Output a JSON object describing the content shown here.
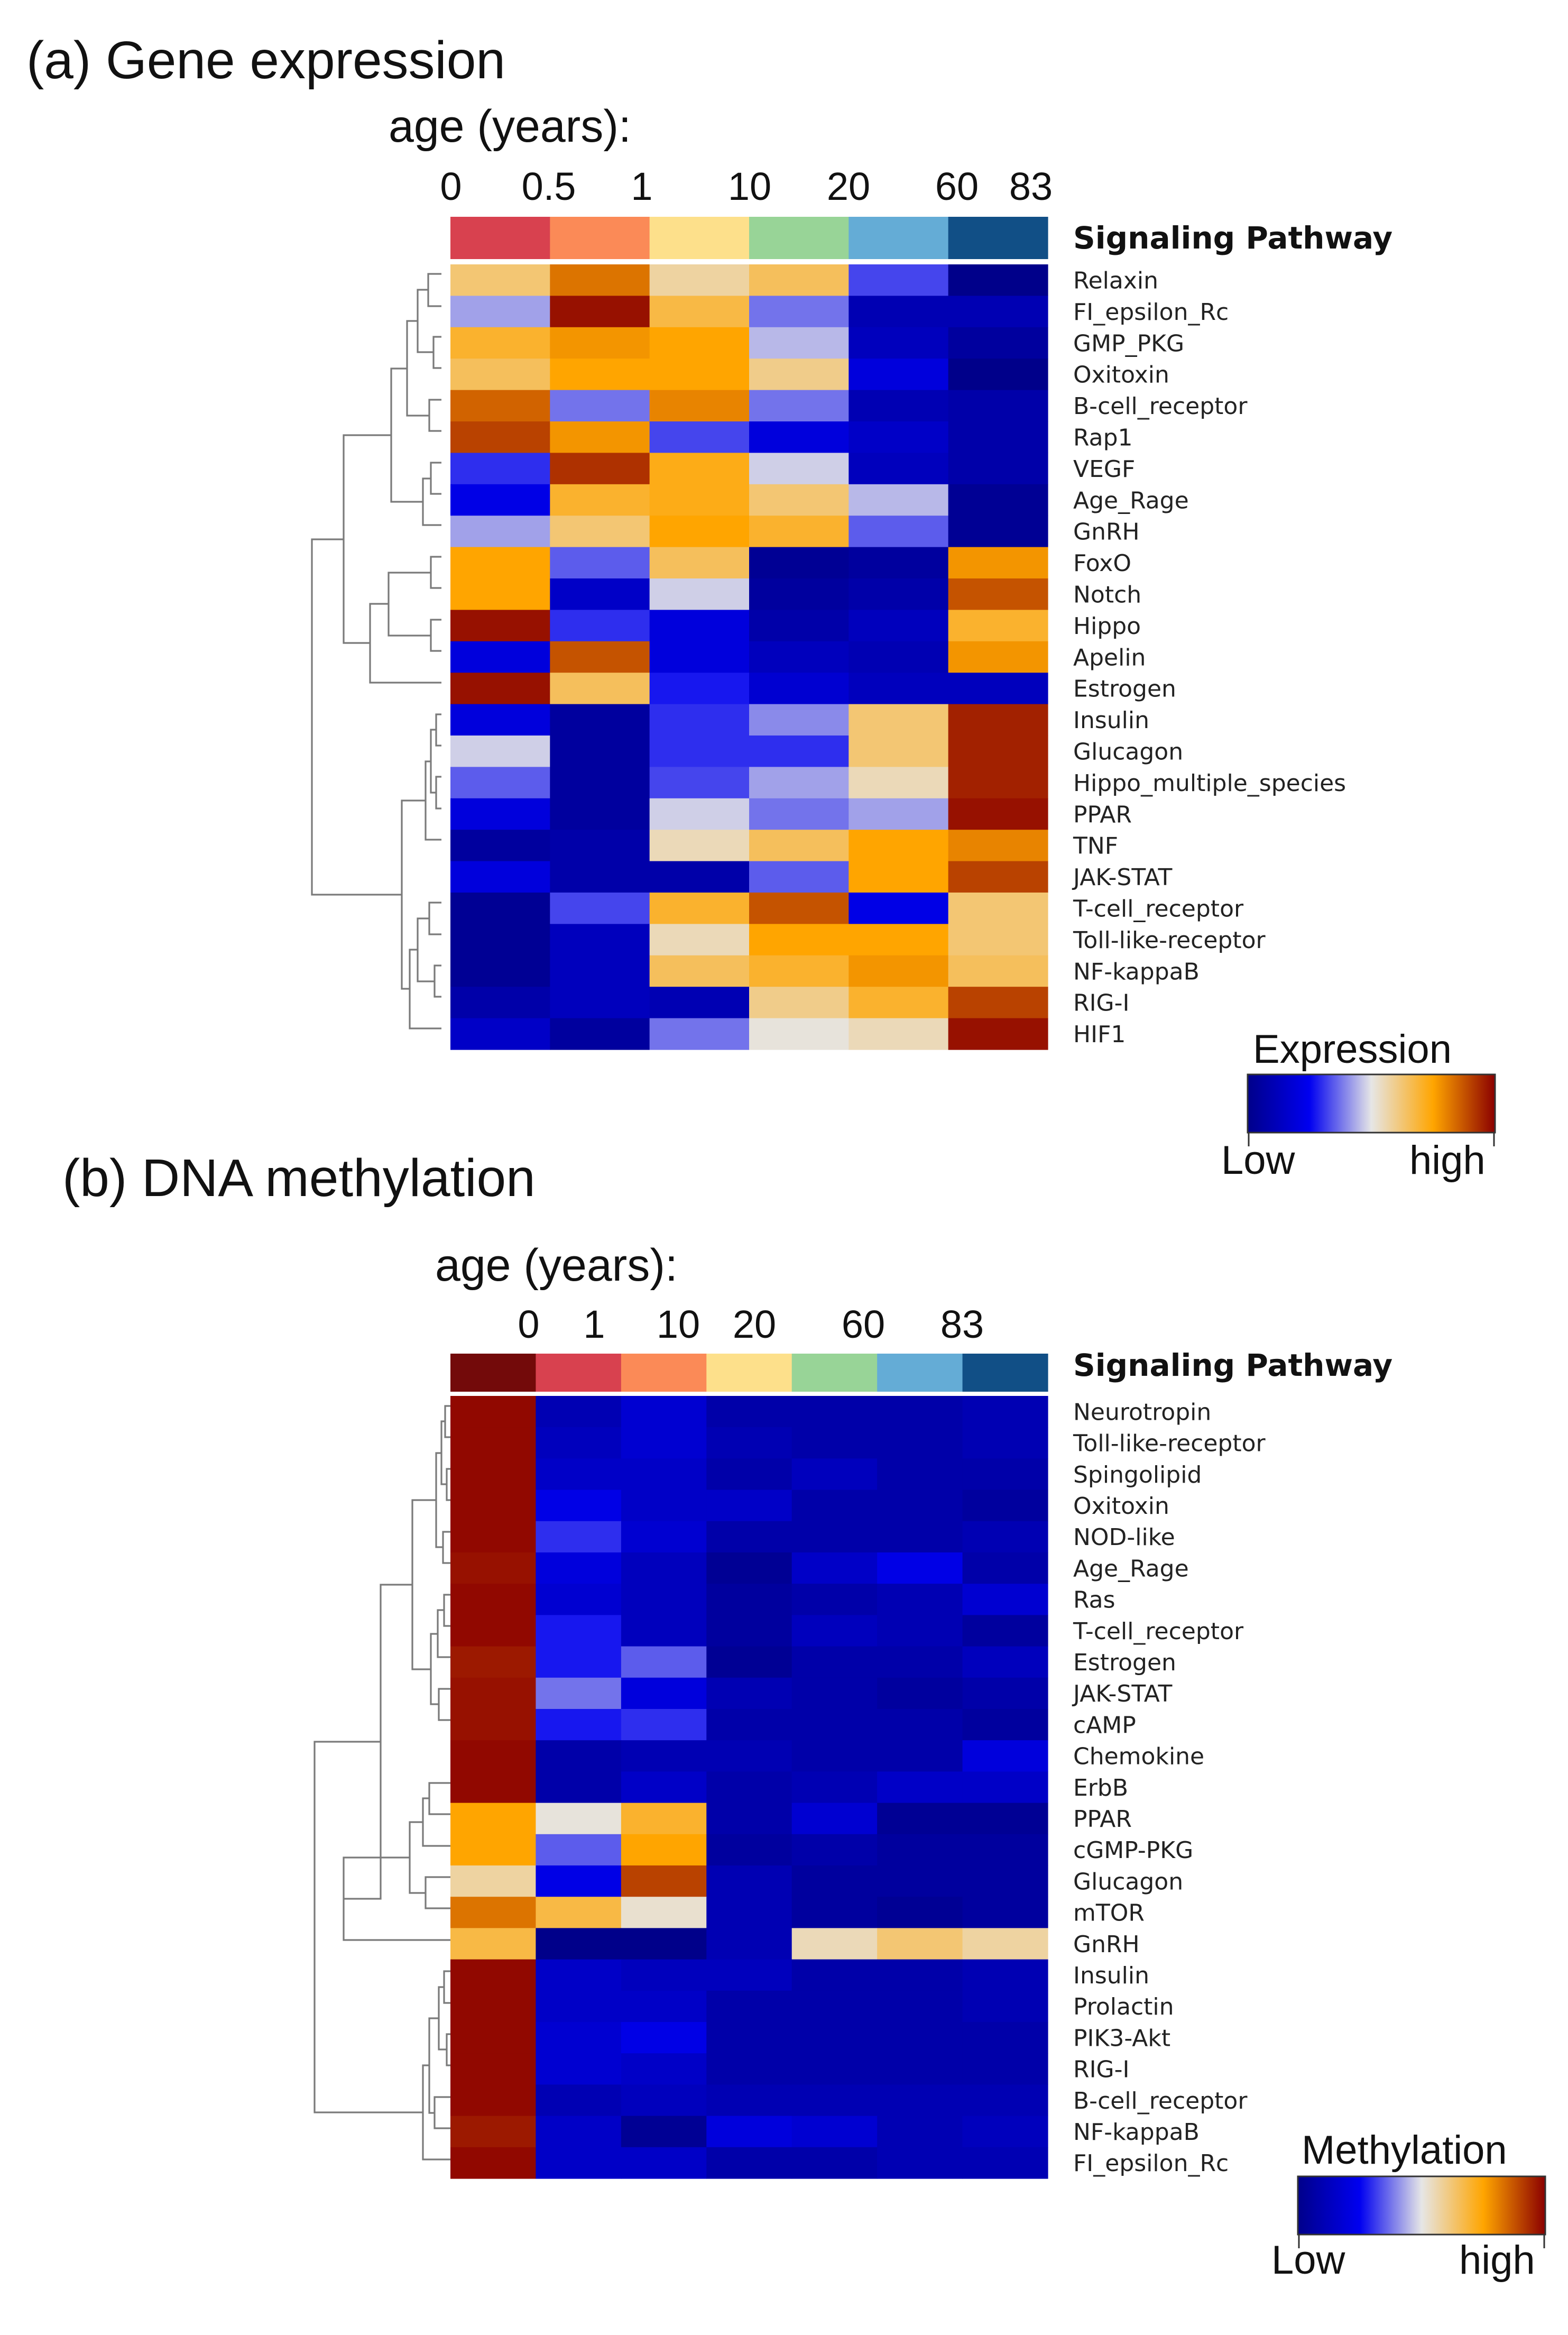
{
  "colors": {
    "scale": [
      "#00008a",
      "#0000f0",
      "#e6e6e6",
      "#ffa500",
      "#8b0000"
    ],
    "text": "#111111",
    "dendrogram": "#7a7a7a"
  },
  "chart_data": [
    {
      "type": "heatmap",
      "id": "a",
      "title": "(a) Gene expression",
      "age_label": "age (years):",
      "age_ticks": [
        "0",
        "0.5",
        "1",
        "10",
        "20",
        "60",
        "83"
      ],
      "column_header": "Signaling Pathway",
      "group_colors": [
        "#d8414f",
        "#fb8a57",
        "#fde08b",
        "#98d497",
        "#64acd6",
        "#114f86"
      ],
      "value_range": [
        -2,
        2
      ],
      "legend": {
        "title": "Expression",
        "low": "Low",
        "high": "high"
      },
      "rows": [
        "Relaxin",
        "FI_epsilon_Rc",
        "GMP_PKG",
        "Oxitoxin",
        "B-cell_receptor",
        "Rap1",
        "VEGF",
        "Age_Rage",
        "GnRH",
        "FoxO",
        "Notch",
        "Hippo",
        "Apelin",
        "Estrogen",
        "Insulin",
        "Glucagon",
        "Hippo_multiple_species",
        "PPAR",
        "TNF",
        "JAK-STAT",
        "T-cell_receptor",
        "Toll-like-receptor",
        "NF-kappaB",
        "RIG-I",
        "HIF1"
      ],
      "values": [
        [
          0.5,
          1.3,
          0.3,
          0.6,
          -0.7,
          -2.0
        ],
        [
          -0.3,
          1.9,
          0.7,
          -0.5,
          -1.6,
          -1.6
        ],
        [
          0.8,
          1.1,
          1.0,
          -0.2,
          -1.5,
          -1.8
        ],
        [
          0.6,
          1.0,
          1.0,
          0.4,
          -1.2,
          -2.0
        ],
        [
          1.4,
          -0.5,
          1.2,
          -0.5,
          -1.6,
          -1.7
        ],
        [
          1.6,
          1.1,
          -0.7,
          -1.2,
          -1.4,
          -1.7
        ],
        [
          -0.8,
          1.7,
          0.9,
          -0.1,
          -1.5,
          -1.7
        ],
        [
          -1.1,
          0.8,
          0.9,
          0.5,
          -0.2,
          -1.9
        ],
        [
          -0.3,
          0.5,
          1.0,
          0.8,
          -0.6,
          -1.9
        ],
        [
          1.0,
          -0.6,
          0.6,
          -1.9,
          -1.8,
          1.1
        ],
        [
          1.0,
          -1.4,
          -0.1,
          -1.8,
          -1.7,
          1.5
        ],
        [
          1.9,
          -0.8,
          -1.2,
          -1.7,
          -1.5,
          0.8
        ],
        [
          -1.2,
          1.5,
          -1.2,
          -1.5,
          -1.6,
          1.1
        ],
        [
          1.9,
          0.6,
          -0.9,
          -1.3,
          -1.5,
          -1.5
        ],
        [
          -1.2,
          -1.8,
          -0.8,
          -0.4,
          0.5,
          1.8
        ],
        [
          -0.1,
          -1.8,
          -0.8,
          -0.8,
          0.5,
          1.8
        ],
        [
          -0.6,
          -1.8,
          -0.7,
          -0.3,
          0.2,
          1.8
        ],
        [
          -1.2,
          -1.8,
          -0.1,
          -0.5,
          -0.3,
          1.9
        ],
        [
          -1.8,
          -1.7,
          0.2,
          0.6,
          1.0,
          1.2
        ],
        [
          -1.2,
          -1.7,
          -1.7,
          -0.6,
          1.0,
          1.6
        ],
        [
          -1.9,
          -0.7,
          0.8,
          1.5,
          -1.1,
          0.5
        ],
        [
          -1.9,
          -1.5,
          0.2,
          1.0,
          1.0,
          0.5
        ],
        [
          -1.9,
          -1.5,
          0.6,
          0.8,
          1.1,
          0.6
        ],
        [
          -1.7,
          -1.5,
          -1.6,
          0.4,
          0.8,
          1.6
        ],
        [
          -1.4,
          -1.8,
          -0.5,
          0.05,
          0.2,
          1.9
        ]
      ]
    },
    {
      "type": "heatmap",
      "id": "b",
      "title": "(b) DNA methylation",
      "age_label": "age (years):",
      "age_ticks": [
        "0",
        "1",
        "10",
        "20",
        "60",
        "83"
      ],
      "column_header": "Signaling Pathway",
      "group_colors": [
        "#730a0a",
        "#d8414f",
        "#fb8a57",
        "#fde08b",
        "#98d497",
        "#64acd6",
        "#114f86"
      ],
      "value_range": [
        -2,
        2
      ],
      "legend": {
        "title": "Methylation",
        "low": "Low",
        "high": "high"
      },
      "rows": [
        "Neurotropin",
        "Toll-like-receptor",
        "Spingolipid",
        "Oxitoxin",
        "NOD-like",
        "Age_Rage",
        "Ras",
        "T-cell_receptor",
        "Estrogen",
        "JAK-STAT",
        "cAMP",
        "Chemokine",
        "ErbB",
        "PPAR",
        "cGMP-PKG",
        "Glucagon",
        "mTOR",
        "GnRH",
        "Insulin",
        "Prolactin",
        "PIK3-Akt",
        "RIG-I",
        "B-cell_receptor",
        "NF-kappaB",
        "FI_epsilon_Rc"
      ],
      "values": [
        [
          1.95,
          -1.6,
          -1.3,
          -1.7,
          -1.7,
          -1.7,
          -1.6
        ],
        [
          1.95,
          -1.5,
          -1.3,
          -1.6,
          -1.7,
          -1.7,
          -1.6
        ],
        [
          1.95,
          -1.4,
          -1.4,
          -1.7,
          -1.5,
          -1.7,
          -1.7
        ],
        [
          1.95,
          -1.1,
          -1.4,
          -1.4,
          -1.7,
          -1.7,
          -1.8
        ],
        [
          1.95,
          -0.8,
          -1.3,
          -1.7,
          -1.7,
          -1.7,
          -1.6
        ],
        [
          1.9,
          -1.2,
          -1.5,
          -1.9,
          -1.4,
          -1.1,
          -1.7
        ],
        [
          1.95,
          -1.3,
          -1.5,
          -1.8,
          -1.7,
          -1.6,
          -1.3
        ],
        [
          1.95,
          -0.9,
          -1.5,
          -1.8,
          -1.5,
          -1.6,
          -1.8
        ],
        [
          1.85,
          -0.9,
          -0.6,
          -1.9,
          -1.7,
          -1.7,
          -1.5
        ],
        [
          1.9,
          -0.5,
          -1.2,
          -1.6,
          -1.7,
          -1.8,
          -1.7
        ],
        [
          1.9,
          -0.9,
          -0.8,
          -1.7,
          -1.7,
          -1.7,
          -1.8
        ],
        [
          1.95,
          -1.7,
          -1.6,
          -1.6,
          -1.7,
          -1.7,
          -1.2
        ],
        [
          1.95,
          -1.7,
          -1.4,
          -1.7,
          -1.6,
          -1.4,
          -1.4
        ],
        [
          1.0,
          0.05,
          0.8,
          -1.7,
          -1.3,
          -1.9,
          -1.9
        ],
        [
          1.0,
          -0.6,
          1.0,
          -1.8,
          -1.7,
          -1.8,
          -1.8
        ],
        [
          0.3,
          -1.1,
          1.6,
          -1.6,
          -1.8,
          -1.8,
          -1.8
        ],
        [
          1.3,
          0.7,
          0.1,
          -1.6,
          -1.8,
          -1.9,
          -1.8
        ],
        [
          0.7,
          -2.0,
          -2.0,
          -1.6,
          0.2,
          0.5,
          0.3
        ],
        [
          1.95,
          -1.4,
          -1.5,
          -1.5,
          -1.7,
          -1.7,
          -1.6
        ],
        [
          1.95,
          -1.4,
          -1.4,
          -1.7,
          -1.7,
          -1.7,
          -1.6
        ],
        [
          1.95,
          -1.3,
          -1.1,
          -1.7,
          -1.7,
          -1.7,
          -1.7
        ],
        [
          1.95,
          -1.3,
          -1.4,
          -1.7,
          -1.7,
          -1.7,
          -1.7
        ],
        [
          1.95,
          -1.6,
          -1.5,
          -1.6,
          -1.6,
          -1.6,
          -1.6
        ],
        [
          1.85,
          -1.4,
          -1.9,
          -1.2,
          -1.3,
          -1.6,
          -1.5
        ],
        [
          1.95,
          -1.4,
          -1.4,
          -1.7,
          -1.7,
          -1.6,
          -1.6
        ]
      ]
    }
  ]
}
